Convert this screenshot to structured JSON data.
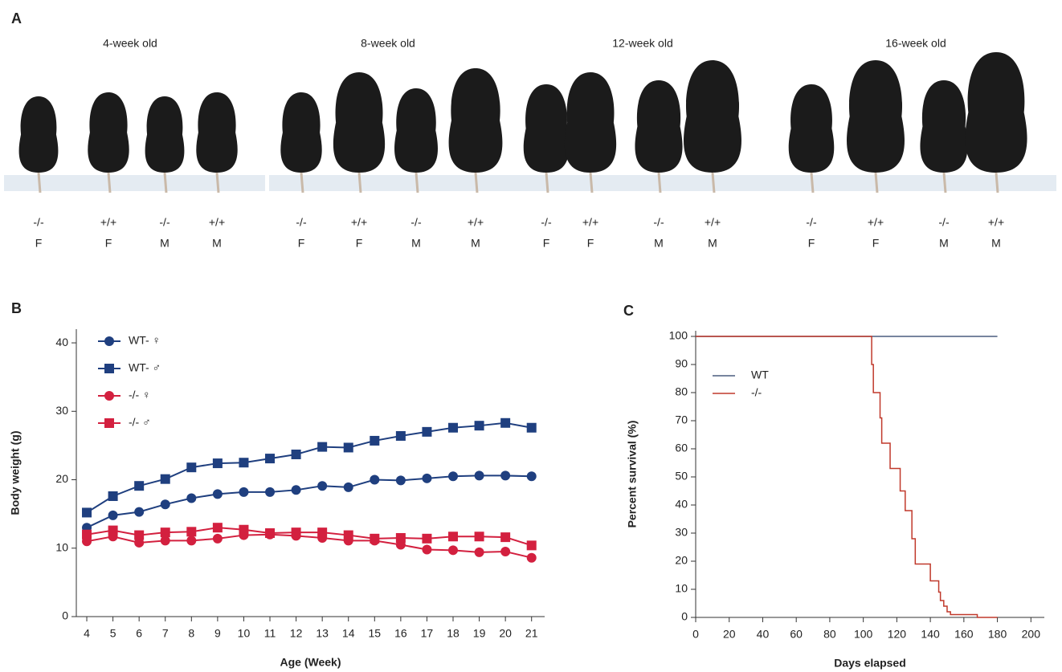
{
  "panel_a": {
    "label": "A",
    "groups": [
      {
        "title": "4-week old",
        "mice": [
          {
            "genotype": "-/-",
            "sex": "F",
            "color": "#c0394b"
          },
          {
            "genotype": "+/+",
            "sex": "F",
            "color": "#222222"
          },
          {
            "genotype": "-/-",
            "sex": "M",
            "color": "#c0394b"
          },
          {
            "genotype": "+/+",
            "sex": "M",
            "color": "#222222"
          }
        ]
      },
      {
        "title": "8-week old",
        "mice": [
          {
            "genotype": "-/-",
            "sex": "F",
            "color": "#c0394b"
          },
          {
            "genotype": "+/+",
            "sex": "F",
            "color": "#222222"
          },
          {
            "genotype": "-/-",
            "sex": "M",
            "color": "#c0394b"
          },
          {
            "genotype": "+/+",
            "sex": "M",
            "color": "#222222"
          }
        ]
      },
      {
        "title": "12-week old",
        "mice": [
          {
            "genotype": "-/-",
            "sex": "F",
            "color": "#c0394b"
          },
          {
            "genotype": "+/+",
            "sex": "F",
            "color": "#222222"
          },
          {
            "genotype": "-/-",
            "sex": "M",
            "color": "#c0394b"
          },
          {
            "genotype": "+/+",
            "sex": "M",
            "color": "#222222"
          }
        ]
      },
      {
        "title": "16-week old",
        "mice": [
          {
            "genotype": "-/-",
            "sex": "F",
            "color": "#c0394b"
          },
          {
            "genotype": "+/+",
            "sex": "F",
            "color": "#222222"
          },
          {
            "genotype": "-/-",
            "sex": "M",
            "color": "#c0394b"
          },
          {
            "genotype": "+/+",
            "sex": "M",
            "color": "#222222"
          }
        ]
      }
    ]
  },
  "chart_data": [
    {
      "type": "line",
      "panel": "B",
      "x_label": "Age (Week)",
      "y_label": "Body weight (g)",
      "x": [
        4,
        5,
        6,
        7,
        8,
        9,
        10,
        11,
        12,
        13,
        14,
        15,
        16,
        17,
        18,
        19,
        20,
        21
      ],
      "xlim": [
        3.6,
        21.5
      ],
      "xticks": [
        4,
        5,
        6,
        7,
        8,
        9,
        10,
        11,
        12,
        13,
        14,
        15,
        16,
        17,
        18,
        19,
        20,
        21
      ],
      "ylim": [
        0,
        42
      ],
      "yticks": [
        0,
        10,
        20,
        30,
        40
      ],
      "series": [
        {
          "name": "WT- ♀",
          "color": "#1f3f7f",
          "marker": "circle",
          "values": [
            13,
            14.8,
            15.3,
            16.4,
            17.3,
            17.9,
            18.2,
            18.2,
            18.5,
            19.1,
            18.9,
            20.0,
            19.9,
            20.2,
            20.5,
            20.6,
            20.6,
            20.5
          ]
        },
        {
          "name": "WT- ♂",
          "color": "#1f3f7f",
          "marker": "square",
          "values": [
            15.2,
            17.6,
            19.1,
            20.1,
            21.8,
            22.4,
            22.5,
            23.1,
            23.7,
            24.8,
            24.7,
            25.7,
            26.4,
            27.0,
            27.6,
            27.9,
            28.3,
            27.6
          ]
        },
        {
          "name": "-/- ♀",
          "color": "#d3203f",
          "marker": "circle",
          "values": [
            11.0,
            11.7,
            10.8,
            11.1,
            11.1,
            11.4,
            11.9,
            12.0,
            11.8,
            11.5,
            11.1,
            11.1,
            10.5,
            9.8,
            9.7,
            9.4,
            9.5,
            8.6
          ]
        },
        {
          "name": "-/- ♂",
          "color": "#d3203f",
          "marker": "square",
          "values": [
            12.0,
            12.6,
            11.9,
            12.3,
            12.4,
            13.0,
            12.7,
            12.2,
            12.3,
            12.3,
            11.9,
            11.4,
            11.5,
            11.4,
            11.7,
            11.7,
            11.6,
            10.4
          ]
        }
      ]
    },
    {
      "type": "step",
      "panel": "C",
      "x_label": "Days elapsed",
      "y_label": "Percent survival (%)",
      "xlim": [
        0,
        208
      ],
      "xticks": [
        0,
        20,
        40,
        60,
        80,
        100,
        120,
        140,
        160,
        180,
        200
      ],
      "ylim": [
        0,
        102
      ],
      "yticks": [
        0,
        10,
        20,
        30,
        40,
        50,
        60,
        70,
        80,
        90,
        100
      ],
      "series": [
        {
          "name": "WT",
          "color": "#4a5d7e",
          "x": [
            0,
            180
          ],
          "values": [
            100,
            100
          ]
        },
        {
          "name": "-/-",
          "color": "#c0392b",
          "x": [
            0,
            105,
            106,
            110,
            111,
            116,
            122,
            125,
            129,
            131,
            140,
            145,
            146,
            148,
            150,
            152,
            155,
            168,
            180
          ],
          "values": [
            100,
            90,
            80,
            71,
            62,
            53,
            45,
            38,
            28,
            19,
            13,
            9,
            6,
            4,
            2,
            1,
            1,
            0,
            0
          ]
        }
      ]
    }
  ]
}
